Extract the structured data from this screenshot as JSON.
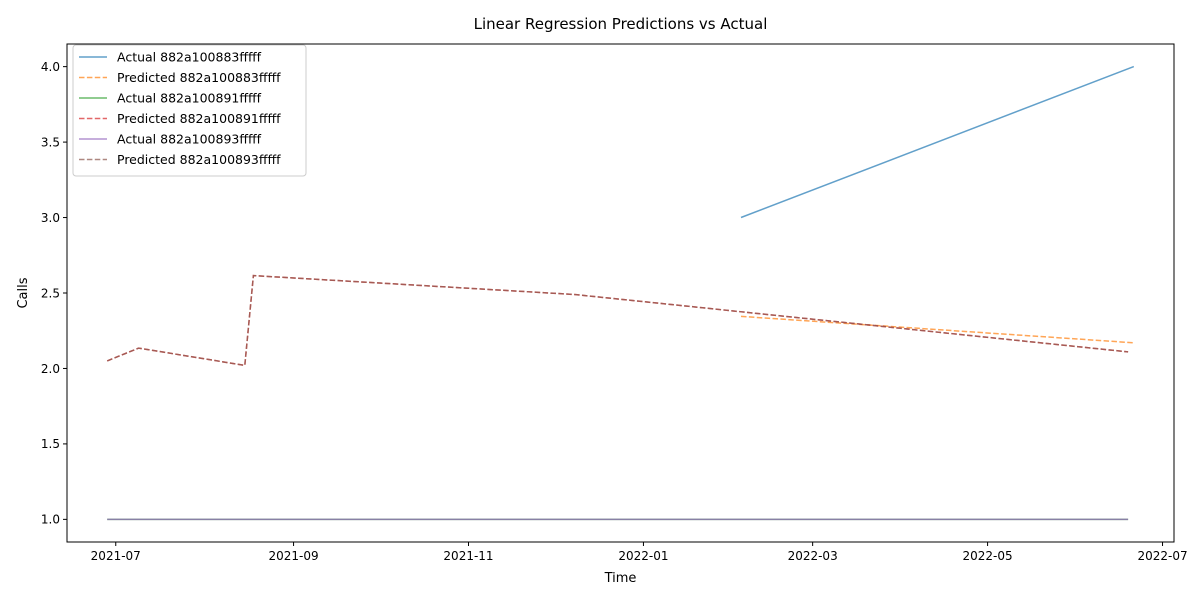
{
  "chart_data": {
    "type": "line",
    "title": "Linear Regression Predictions vs Actual",
    "xlabel": "Time",
    "ylabel": "Calls",
    "xlim": [
      "2021-06-14",
      "2022-07-05"
    ],
    "ylim": [
      0.85,
      4.15
    ],
    "x_ticks": [
      "2021-07-01",
      "2021-09-01",
      "2021-11-01",
      "2022-01-01",
      "2022-03-01",
      "2022-05-01",
      "2022-07-01"
    ],
    "x_tick_labels": [
      "2021-07",
      "2021-09",
      "2021-11",
      "2022-01",
      "2022-03",
      "2022-05",
      "2022-07"
    ],
    "y_ticks": [
      1.0,
      1.5,
      2.0,
      2.5,
      3.0,
      3.5,
      4.0
    ],
    "y_tick_labels": [
      "1.0",
      "1.5",
      "2.0",
      "2.5",
      "3.0",
      "3.5",
      "4.0"
    ],
    "grid": false,
    "legend_position": "top-left",
    "series": [
      {
        "name": "Actual 882a100883fffff",
        "style": "solid",
        "color": "#1f77b4",
        "points": [
          [
            "2022-02-04",
            3.0
          ],
          [
            "2022-06-21",
            4.0
          ]
        ]
      },
      {
        "name": "Predicted 882a100883fffff",
        "style": "dashed",
        "color": "#ff7f0e",
        "points": [
          [
            "2022-02-04",
            2.345
          ],
          [
            "2022-06-21",
            2.17
          ]
        ]
      },
      {
        "name": "Actual 882a100891fffff",
        "style": "solid",
        "color": "#2ca02c",
        "points": [
          [
            "2021-06-28",
            1.0
          ],
          [
            "2022-06-19",
            1.0
          ]
        ]
      },
      {
        "name": "Predicted 882a100891fffff",
        "style": "dashed",
        "color": "#d62728",
        "points": [
          [
            "2021-06-28",
            2.05
          ],
          [
            "2021-07-09",
            2.135
          ],
          [
            "2021-08-15",
            2.02
          ],
          [
            "2021-08-18",
            2.615
          ],
          [
            "2021-12-08",
            2.49
          ],
          [
            "2022-06-19",
            2.11
          ]
        ]
      },
      {
        "name": "Actual 882a100893fffff",
        "style": "solid",
        "color": "#9467bd",
        "points": [
          [
            "2021-06-28",
            1.0
          ],
          [
            "2022-06-19",
            1.0
          ]
        ]
      },
      {
        "name": "Predicted 882a100893fffff",
        "style": "dashed",
        "color": "#8c564b",
        "points": [
          [
            "2021-06-28",
            2.05
          ],
          [
            "2021-07-09",
            2.135
          ],
          [
            "2021-08-15",
            2.02
          ],
          [
            "2021-08-18",
            2.615
          ],
          [
            "2021-12-08",
            2.49
          ],
          [
            "2022-06-19",
            2.11
          ]
        ]
      }
    ]
  }
}
